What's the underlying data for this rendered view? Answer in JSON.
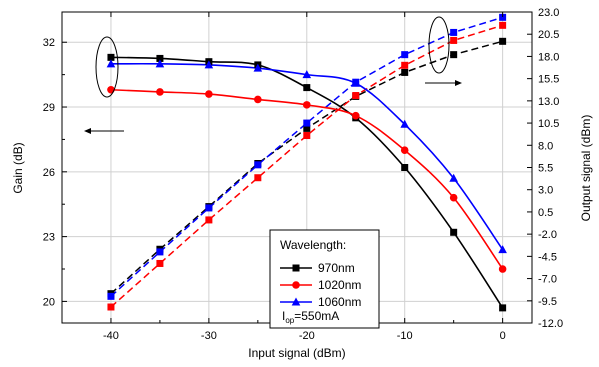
{
  "chart_data": {
    "type": "line",
    "xlabel": "Input signal (dBm)",
    "ylabel_left": "Gain (dB)",
    "ylabel_right": "Output signal (dBm)",
    "xlim": [
      -45,
      3
    ],
    "ylim_left": [
      19,
      33.4
    ],
    "ylim_right": [
      -12.0,
      23.0
    ],
    "x_ticks": [
      "-40",
      "-30",
      "-20",
      "-10",
      "0"
    ],
    "x_tick_values": [
      -40,
      -30,
      -20,
      -10,
      0
    ],
    "y_left_ticks": [
      "20",
      "23",
      "26",
      "29",
      "32"
    ],
    "y_left_tick_values": [
      20,
      23,
      26,
      29,
      32
    ],
    "y_right_ticks": [
      "23.0",
      "20.5",
      "18.0",
      "15.5",
      "13.0",
      "10.5",
      "8.0",
      "5.5",
      "3.0",
      "0.5",
      "-2.0",
      "-4.5",
      "-7.0",
      "-9.5",
      "-12.0"
    ],
    "y_right_tick_values": [
      23.0,
      20.5,
      18.0,
      15.5,
      13.0,
      10.5,
      8.0,
      5.5,
      3.0,
      0.5,
      -2.0,
      -4.5,
      -7.0,
      -9.5,
      -12.0
    ],
    "x": [
      -40,
      -35,
      -30,
      -25,
      -20,
      -15,
      -10,
      -5,
      0
    ],
    "gain_series": [
      {
        "name": "970nm",
        "color": "#000000",
        "marker": "square",
        "values": [
          31.3,
          31.25,
          31.1,
          30.95,
          29.9,
          28.5,
          26.2,
          23.2,
          19.7
        ]
      },
      {
        "name": "1020nm",
        "color": "#ff0000",
        "marker": "circle",
        "values": [
          29.8,
          29.7,
          29.6,
          29.35,
          29.1,
          28.6,
          27.0,
          24.8,
          21.5
        ]
      },
      {
        "name": "1060nm",
        "color": "#0000ff",
        "marker": "triangle",
        "values": [
          31.0,
          31.0,
          30.95,
          30.8,
          30.5,
          30.1,
          28.2,
          25.7,
          22.4
        ]
      }
    ],
    "output_series": [
      {
        "name": "970nm",
        "color": "#000000",
        "marker": "square",
        "values": [
          -8.7,
          -3.7,
          1.1,
          5.95,
          9.9,
          13.5,
          16.2,
          18.2,
          19.7
        ]
      },
      {
        "name": "1020nm",
        "color": "#ff0000",
        "marker": "square",
        "values": [
          -10.2,
          -5.3,
          -0.4,
          4.35,
          9.1,
          13.6,
          17.0,
          19.8,
          21.5
        ]
      },
      {
        "name": "1060nm",
        "color": "#0000ff",
        "marker": "square",
        "values": [
          -9.0,
          -4.0,
          0.95,
          5.8,
          10.5,
          15.1,
          18.2,
          20.7,
          22.4
        ]
      }
    ],
    "legend": {
      "title": "Wavelength:",
      "entries": [
        "970nm",
        "1020nm",
        "1060nm"
      ],
      "note_prefix": "I",
      "note_sub": "op",
      "note_value": "=550mA"
    },
    "grid": true
  }
}
